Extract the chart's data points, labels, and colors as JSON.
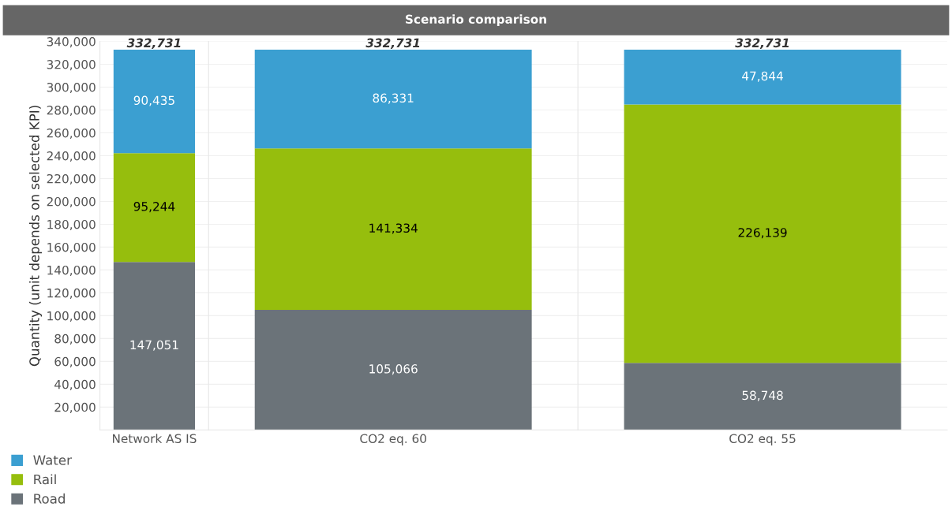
{
  "chart_data": [
    {
      "type": "bar",
      "ylabel": "Quantity (unit depends on selected KPI)",
      "categories": [
        "Network AS IS"
      ],
      "stacked": true,
      "totals": [
        "332,731"
      ],
      "ylim": [
        0,
        340000
      ],
      "yticks": [
        {
          "value": 20000,
          "label": "20,000"
        },
        {
          "value": 40000,
          "label": "40,000"
        },
        {
          "value": 60000,
          "label": "60,000"
        },
        {
          "value": 80000,
          "label": "80,000"
        },
        {
          "value": 100000,
          "label": "100,000"
        },
        {
          "value": 120000,
          "label": "120,000"
        },
        {
          "value": 140000,
          "label": "140,000"
        },
        {
          "value": 160000,
          "label": "160,000"
        },
        {
          "value": 180000,
          "label": "180,000"
        },
        {
          "value": 200000,
          "label": "200,000"
        },
        {
          "value": 220000,
          "label": "220,000"
        },
        {
          "value": 240000,
          "label": "240,000"
        },
        {
          "value": 260000,
          "label": "260,000"
        },
        {
          "value": 280000,
          "label": "280,000"
        },
        {
          "value": 300000,
          "label": "300,000"
        },
        {
          "value": 320000,
          "label": "320,000"
        },
        {
          "value": 340000,
          "label": "340,000"
        }
      ],
      "grid": "y",
      "legend": "bottom left",
      "series": [
        {
          "name": "Road",
          "color": "#6b7379",
          "values": [
            147051
          ],
          "value_labels": [
            "147,051"
          ]
        },
        {
          "name": "Rail",
          "color": "#96be0d",
          "values": [
            95244
          ],
          "value_labels": [
            "95,244"
          ]
        },
        {
          "name": "Water",
          "color": "#3b9fd1",
          "values": [
            90435
          ],
          "value_labels": [
            "90,435"
          ]
        }
      ]
    },
    {
      "type": "bar",
      "title": "Scenario comparison",
      "categories": [
        "CO2 eq. 60"
      ],
      "stacked": true,
      "totals": [
        "332,731"
      ],
      "ylim": [
        0,
        340000
      ],
      "tick_labels": "x",
      "grid": "y",
      "series": [
        {
          "color": "#6b7379",
          "values": [
            105066
          ],
          "value_labels": [
            "105,066"
          ]
        },
        {
          "color": "#96be0d",
          "values": [
            141334
          ],
          "value_labels": [
            "141,334"
          ]
        },
        {
          "color": "#3b9fd1",
          "values": [
            86331
          ],
          "value_labels": [
            "86,331"
          ]
        }
      ]
    },
    {
      "type": "bar",
      "categories": [
        "CO2 eq. 55"
      ],
      "stacked": true,
      "totals": [
        "332,731"
      ],
      "ylim": [
        0,
        340000
      ],
      "tick_labels": "x",
      "grid": "y",
      "series": [
        {
          "color": "#6b7379",
          "values": [
            58748
          ],
          "value_labels": [
            "58,748"
          ]
        },
        {
          "color": "#96be0d",
          "values": [
            226139
          ],
          "value_labels": [
            "226,139"
          ]
        },
        {
          "color": "#3b9fd1",
          "values": [
            47844
          ],
          "value_labels": [
            "47,844"
          ]
        }
      ]
    }
  ]
}
